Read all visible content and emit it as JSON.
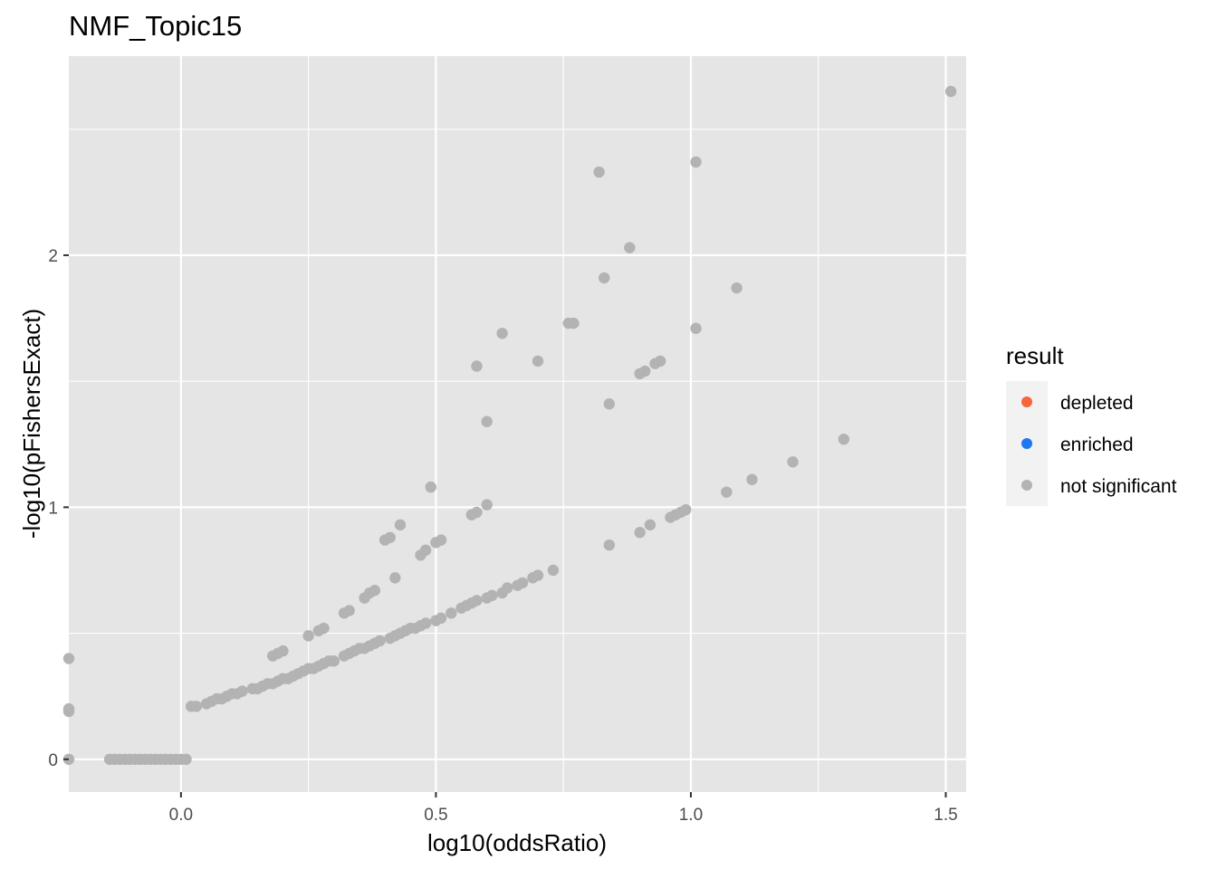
{
  "chart_data": {
    "type": "scatter",
    "title": "NMF_Topic15",
    "xlabel": "log10(oddsRatio)",
    "ylabel": "-log10(pFishersExact)",
    "xlim": [
      -0.22,
      1.54
    ],
    "ylim": [
      -0.13,
      2.79
    ],
    "x_ticks": [
      0.0,
      0.5,
      1.0,
      1.5
    ],
    "x_tick_labels": [
      "0.0",
      "0.5",
      "1.0",
      "1.5"
    ],
    "y_ticks": [
      0,
      1,
      2
    ],
    "y_tick_labels": [
      "0",
      "1",
      "2"
    ],
    "grid": true,
    "legend": {
      "title": "result",
      "placement": "right",
      "entries": [
        {
          "label": "depleted",
          "color": "#F8643C"
        },
        {
          "label": "enriched",
          "color": "#1E78F0"
        },
        {
          "label": "not significant",
          "color": "#B3B3B3"
        }
      ]
    },
    "series": [
      {
        "name": "not significant",
        "color": "#B3B3B3",
        "points": [
          [
            -0.22,
            0.4
          ],
          [
            -0.22,
            0.2
          ],
          [
            -0.22,
            0.19
          ],
          [
            -0.22,
            0.0
          ],
          [
            -0.14,
            0.0
          ],
          [
            -0.13,
            0.0
          ],
          [
            -0.12,
            0.0
          ],
          [
            -0.11,
            0.0
          ],
          [
            -0.1,
            0.0
          ],
          [
            -0.09,
            0.0
          ],
          [
            -0.08,
            0.0
          ],
          [
            -0.07,
            0.0
          ],
          [
            -0.06,
            0.0
          ],
          [
            -0.05,
            0.0
          ],
          [
            -0.04,
            0.0
          ],
          [
            -0.03,
            0.0
          ],
          [
            -0.02,
            0.0
          ],
          [
            -0.01,
            0.0
          ],
          [
            0.0,
            0.0
          ],
          [
            0.01,
            0.0
          ],
          [
            0.02,
            0.21
          ],
          [
            0.03,
            0.21
          ],
          [
            0.05,
            0.22
          ],
          [
            0.06,
            0.23
          ],
          [
            0.07,
            0.24
          ],
          [
            0.08,
            0.24
          ],
          [
            0.09,
            0.25
          ],
          [
            0.1,
            0.26
          ],
          [
            0.11,
            0.26
          ],
          [
            0.12,
            0.27
          ],
          [
            0.14,
            0.28
          ],
          [
            0.15,
            0.28
          ],
          [
            0.16,
            0.29
          ],
          [
            0.17,
            0.3
          ],
          [
            0.18,
            0.3
          ],
          [
            0.19,
            0.31
          ],
          [
            0.2,
            0.32
          ],
          [
            0.21,
            0.32
          ],
          [
            0.22,
            0.33
          ],
          [
            0.23,
            0.34
          ],
          [
            0.24,
            0.35
          ],
          [
            0.25,
            0.36
          ],
          [
            0.26,
            0.36
          ],
          [
            0.27,
            0.37
          ],
          [
            0.28,
            0.38
          ],
          [
            0.29,
            0.39
          ],
          [
            0.3,
            0.39
          ],
          [
            0.32,
            0.41
          ],
          [
            0.33,
            0.42
          ],
          [
            0.34,
            0.43
          ],
          [
            0.35,
            0.44
          ],
          [
            0.36,
            0.44
          ],
          [
            0.37,
            0.45
          ],
          [
            0.38,
            0.46
          ],
          [
            0.39,
            0.47
          ],
          [
            0.41,
            0.48
          ],
          [
            0.42,
            0.49
          ],
          [
            0.43,
            0.5
          ],
          [
            0.44,
            0.51
          ],
          [
            0.45,
            0.52
          ],
          [
            0.46,
            0.52
          ],
          [
            0.47,
            0.53
          ],
          [
            0.48,
            0.54
          ],
          [
            0.5,
            0.55
          ],
          [
            0.51,
            0.56
          ],
          [
            0.53,
            0.58
          ],
          [
            0.55,
            0.6
          ],
          [
            0.56,
            0.61
          ],
          [
            0.57,
            0.62
          ],
          [
            0.58,
            0.63
          ],
          [
            0.6,
            0.64
          ],
          [
            0.61,
            0.65
          ],
          [
            0.63,
            0.66
          ],
          [
            0.64,
            0.68
          ],
          [
            0.66,
            0.69
          ],
          [
            0.67,
            0.7
          ],
          [
            0.69,
            0.72
          ],
          [
            0.7,
            0.73
          ],
          [
            0.73,
            0.75
          ],
          [
            0.84,
            0.85
          ],
          [
            0.9,
            0.9
          ],
          [
            0.92,
            0.93
          ],
          [
            0.96,
            0.96
          ],
          [
            0.97,
            0.97
          ],
          [
            0.98,
            0.98
          ],
          [
            0.99,
            0.99
          ],
          [
            1.07,
            1.06
          ],
          [
            1.12,
            1.11
          ],
          [
            1.2,
            1.18
          ],
          [
            1.3,
            1.27
          ],
          [
            0.18,
            0.41
          ],
          [
            0.19,
            0.42
          ],
          [
            0.2,
            0.43
          ],
          [
            0.25,
            0.49
          ],
          [
            0.27,
            0.51
          ],
          [
            0.28,
            0.52
          ],
          [
            0.32,
            0.58
          ],
          [
            0.33,
            0.59
          ],
          [
            0.36,
            0.64
          ],
          [
            0.37,
            0.66
          ],
          [
            0.38,
            0.67
          ],
          [
            0.4,
            0.87
          ],
          [
            0.41,
            0.88
          ],
          [
            0.42,
            0.72
          ],
          [
            0.43,
            0.93
          ],
          [
            0.47,
            0.81
          ],
          [
            0.48,
            0.83
          ],
          [
            0.5,
            0.86
          ],
          [
            0.51,
            0.87
          ],
          [
            0.49,
            1.08
          ],
          [
            0.57,
            0.97
          ],
          [
            0.58,
            0.98
          ],
          [
            0.6,
            1.01
          ],
          [
            0.58,
            1.56
          ],
          [
            0.6,
            1.34
          ],
          [
            0.63,
            1.69
          ],
          [
            0.7,
            1.58
          ],
          [
            0.76,
            1.73
          ],
          [
            0.77,
            1.73
          ],
          [
            0.82,
            2.33
          ],
          [
            0.84,
            1.41
          ],
          [
            0.83,
            1.91
          ],
          [
            0.88,
            2.03
          ],
          [
            0.9,
            1.53
          ],
          [
            0.91,
            1.54
          ],
          [
            0.93,
            1.57
          ],
          [
            0.94,
            1.58
          ],
          [
            1.01,
            2.37
          ],
          [
            1.01,
            1.71
          ],
          [
            1.09,
            1.87
          ],
          [
            1.51,
            2.65
          ]
        ]
      }
    ]
  }
}
